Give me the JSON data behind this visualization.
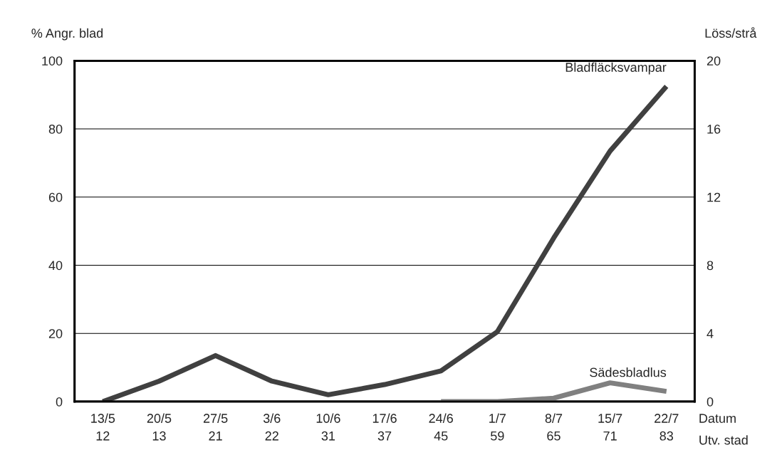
{
  "chart_data": {
    "type": "line",
    "ylabel": "% Angr. blad",
    "y2label": "Löss/strå",
    "categories": [
      "13/5\n12",
      "20/5\n13",
      "27/5\n21",
      "3/6\n22",
      "10/6\n31",
      "17/6\n37",
      "24/6\n45",
      "1/7\n59",
      "8/7\n65",
      "15/7\n71",
      "22/7\n83"
    ],
    "series": [
      {
        "name": "Bladfläcksvampar",
        "color": "#404040",
        "values": [
          0,
          6,
          13.5,
          6,
          2,
          5,
          9,
          20.5,
          48,
          73.5,
          92.5
        ]
      },
      {
        "name": "Sädesbladlus",
        "color": "#808080",
        "axis": "y2",
        "values": [
          null,
          null,
          null,
          null,
          null,
          null,
          0,
          0,
          0.2,
          1.1,
          0.6
        ]
      }
    ],
    "ylim": [
      0,
      100
    ],
    "yticks": [
      0,
      20,
      40,
      60,
      80,
      100
    ],
    "y2lim": [
      0,
      20
    ],
    "y2ticks": [
      0,
      4,
      8,
      12,
      16,
      20
    ],
    "grid": "y",
    "legend": false,
    "marker": "none",
    "line_style": "solid",
    "annotations": [
      "Datum",
      "Utv. stad"
    ]
  }
}
